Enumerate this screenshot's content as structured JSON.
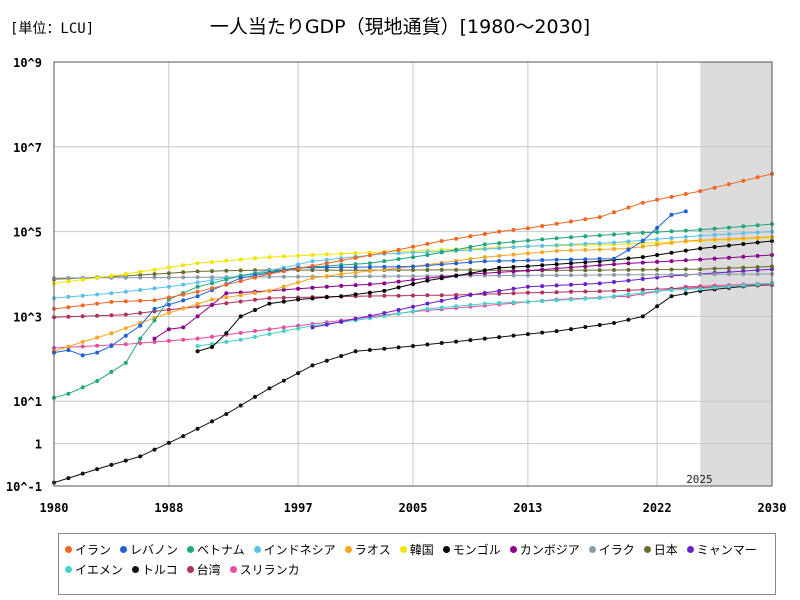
{
  "unit_label": "[単位：LCU]",
  "chart_data": {
    "type": "line",
    "title": "一人当たりGDP（現地通貨）[1980～2030]",
    "xlabel": "",
    "ylabel": "",
    "y_scale": "log",
    "xlim": [
      1980,
      2030
    ],
    "ylim_exponent": [
      -1,
      9
    ],
    "x_ticks": [
      {
        "value": 1980,
        "label": "1980"
      },
      {
        "value": 1988,
        "label": "1988"
      },
      {
        "value": 1997,
        "label": "1997"
      },
      {
        "value": 2005,
        "label": "2005"
      },
      {
        "value": 2013,
        "label": "2013"
      },
      {
        "value": 2022,
        "label": "2022"
      },
      {
        "value": 2030,
        "label": "2030"
      }
    ],
    "y_ticks": [
      {
        "exp": 9,
        "label": "10^9"
      },
      {
        "exp": 7,
        "label": "10^7"
      },
      {
        "exp": 5,
        "label": "10^5"
      },
      {
        "exp": 3,
        "label": "10^3"
      },
      {
        "exp": 1,
        "label": "10^1"
      },
      {
        "exp": 0,
        "label": "1"
      },
      {
        "exp": -1,
        "label": "10^-1"
      }
    ],
    "forecast_region": {
      "start": 2025,
      "end": 2030,
      "label": "2025"
    },
    "series": [
      {
        "name": "イラン",
        "color": "#f26522",
        "start": 1980,
        "end": 2030,
        "anchors": [
          [
            1980,
            1500
          ],
          [
            1984,
            2200
          ],
          [
            1987,
            2400
          ],
          [
            1990,
            3800
          ],
          [
            1995,
            10000
          ],
          [
            1999,
            18000
          ],
          [
            2003,
            32000
          ],
          [
            2007,
            60000
          ],
          [
            2011,
            100000
          ],
          [
            2013,
            120000
          ],
          [
            2018,
            220000
          ],
          [
            2021,
            480000
          ],
          [
            2025,
            900000
          ],
          [
            2030,
            2300000
          ]
        ]
      },
      {
        "name": "レバノン",
        "color": "#1f5fd6",
        "start": 1980,
        "end": 2024,
        "anchors": [
          [
            1980,
            140
          ],
          [
            1981,
            160
          ],
          [
            1982,
            120
          ],
          [
            1983,
            140
          ],
          [
            1984,
            200
          ],
          [
            1985,
            350
          ],
          [
            1986,
            600
          ],
          [
            1987,
            1500
          ],
          [
            1990,
            3000
          ],
          [
            1993,
            8000
          ],
          [
            1997,
            14000
          ],
          [
            2005,
            15000
          ],
          [
            2010,
            20000
          ],
          [
            2019,
            23000
          ],
          [
            2021,
            60000
          ],
          [
            2023,
            250000
          ],
          [
            2024,
            300000
          ]
        ]
      },
      {
        "name": "ベトナム",
        "color": "#1fa67a",
        "start": 1980,
        "end": 2030,
        "anchors": [
          [
            1980,
            12
          ],
          [
            1981,
            15
          ],
          [
            1983,
            30
          ],
          [
            1985,
            80
          ],
          [
            1986,
            300
          ],
          [
            1987,
            800
          ],
          [
            1988,
            2500
          ],
          [
            1990,
            5000
          ],
          [
            1993,
            9000
          ],
          [
            1997,
            14000
          ],
          [
            2002,
            18000
          ],
          [
            2006,
            28000
          ],
          [
            2010,
            50000
          ],
          [
            2015,
            70000
          ],
          [
            2020,
            90000
          ],
          [
            2025,
            110000
          ],
          [
            2030,
            150000
          ]
        ]
      },
      {
        "name": "インドネシア",
        "color": "#5bc0eb",
        "start": 1980,
        "end": 2030,
        "anchors": [
          [
            1980,
            2700
          ],
          [
            1984,
            3500
          ],
          [
            1988,
            5000
          ],
          [
            1992,
            8000
          ],
          [
            1996,
            14000
          ],
          [
            1998,
            20000
          ],
          [
            2003,
            30000
          ],
          [
            2008,
            35000
          ],
          [
            2013,
            45000
          ],
          [
            2019,
            55000
          ],
          [
            2025,
            80000
          ],
          [
            2030,
            100000
          ]
        ]
      },
      {
        "name": "ラオス",
        "color": "#f5a623",
        "start": 1980,
        "end": 2030,
        "anchors": [
          [
            1980,
            150
          ],
          [
            1982,
            250
          ],
          [
            1984,
            400
          ],
          [
            1986,
            700
          ],
          [
            1988,
            1200
          ],
          [
            1991,
            2500
          ],
          [
            1995,
            4000
          ],
          [
            1998,
            8000
          ],
          [
            2000,
            10000
          ],
          [
            2005,
            15000
          ],
          [
            2010,
            25000
          ],
          [
            2015,
            35000
          ],
          [
            2020,
            40000
          ],
          [
            2024,
            60000
          ],
          [
            2030,
            75000
          ]
        ]
      },
      {
        "name": "韓国",
        "color": "#f2e500",
        "start": 1980,
        "end": 2030,
        "anchors": [
          [
            1980,
            6000
          ],
          [
            1985,
            10000
          ],
          [
            1990,
            18000
          ],
          [
            1995,
            25000
          ],
          [
            1998,
            28000
          ],
          [
            2003,
            33000
          ],
          [
            2008,
            38000
          ],
          [
            2013,
            45000
          ],
          [
            2019,
            50000
          ],
          [
            2025,
            60000
          ],
          [
            2030,
            72000
          ]
        ]
      },
      {
        "name": "モンゴル",
        "color": "#000000",
        "start": 1990,
        "end": 2030,
        "anchors": [
          [
            1990,
            150
          ],
          [
            1991,
            190
          ],
          [
            1992,
            400
          ],
          [
            1993,
            1000
          ],
          [
            1995,
            2000
          ],
          [
            1997,
            2500
          ],
          [
            2000,
            3000
          ],
          [
            2003,
            4000
          ],
          [
            2006,
            7000
          ],
          [
            2008,
            9000
          ],
          [
            2011,
            14000
          ],
          [
            2014,
            16000
          ],
          [
            2018,
            20000
          ],
          [
            2021,
            25000
          ],
          [
            2025,
            40000
          ],
          [
            2030,
            60000
          ]
        ]
      },
      {
        "name": "カンボジア",
        "color": "#8b008b",
        "start": 1987,
        "end": 2030,
        "anchors": [
          [
            1987,
            300
          ],
          [
            1988,
            500
          ],
          [
            1989,
            550
          ],
          [
            1990,
            1000
          ],
          [
            1992,
            3500
          ],
          [
            1995,
            4000
          ],
          [
            1999,
            5000
          ],
          [
            2003,
            6000
          ],
          [
            2006,
            8000
          ],
          [
            2009,
            10000
          ],
          [
            2013,
            12000
          ],
          [
            2019,
            17000
          ],
          [
            2025,
            22000
          ],
          [
            2030,
            28000
          ]
        ]
      },
      {
        "name": "イラク",
        "color": "#8a9ba8",
        "start": 1980,
        "end": 2030,
        "anchors": [
          [
            1980,
            8000
          ],
          [
            2030,
            10000
          ]
        ]
      },
      {
        "name": "日本",
        "color": "#6b6b2f",
        "start": 1980,
        "end": 2030,
        "anchors": [
          [
            1980,
            7500
          ],
          [
            1985,
            9000
          ],
          [
            1990,
            11500
          ],
          [
            1995,
            12500
          ],
          [
            2000,
            12300
          ],
          [
            2008,
            12500
          ],
          [
            2013,
            12000
          ],
          [
            2020,
            12500
          ],
          [
            2025,
            13000
          ],
          [
            2030,
            15000
          ]
        ]
      },
      {
        "name": "ミャンマー",
        "color": "#6a1fc9",
        "start": 1998,
        "end": 2030,
        "anchors": [
          [
            1998,
            550
          ],
          [
            2000,
            750
          ],
          [
            2003,
            1200
          ],
          [
            2006,
            2000
          ],
          [
            2009,
            3200
          ],
          [
            2013,
            5000
          ],
          [
            2018,
            6000
          ],
          [
            2020,
            7000
          ],
          [
            2023,
            9000
          ],
          [
            2030,
            13000
          ]
        ]
      },
      {
        "name": "イエメン",
        "color": "#48d1cc",
        "start": 1990,
        "end": 2030,
        "anchors": [
          [
            1990,
            200
          ],
          [
            1993,
            280
          ],
          [
            1996,
            450
          ],
          [
            1998,
            600
          ],
          [
            2002,
            900
          ],
          [
            2006,
            1500
          ],
          [
            2010,
            2000
          ],
          [
            2014,
            2300
          ],
          [
            2018,
            2700
          ],
          [
            2022,
            4000
          ],
          [
            2025,
            4500
          ],
          [
            2030,
            6000
          ]
        ]
      },
      {
        "name": "トルコ",
        "color": "#111111",
        "start": 1980,
        "end": 2030,
        "anchors": [
          [
            1980,
            0.12
          ],
          [
            1983,
            0.25
          ],
          [
            1986,
            0.5
          ],
          [
            1989,
            1.5
          ],
          [
            1992,
            5
          ],
          [
            1995,
            20
          ],
          [
            1998,
            70
          ],
          [
            2001,
            150
          ],
          [
            2005,
            200
          ],
          [
            2010,
            300
          ],
          [
            2015,
            450
          ],
          [
            2019,
            700
          ],
          [
            2021,
            1000
          ],
          [
            2023,
            3000
          ],
          [
            2025,
            4000
          ],
          [
            2030,
            6000
          ]
        ]
      },
      {
        "name": "台湾",
        "color": "#b03060",
        "start": 1980,
        "end": 2030,
        "anchors": [
          [
            1980,
            950
          ],
          [
            1985,
            1100
          ],
          [
            1990,
            1700
          ],
          [
            1995,
            2700
          ],
          [
            2001,
            3000
          ],
          [
            2008,
            3200
          ],
          [
            2013,
            3600
          ],
          [
            2019,
            4000
          ],
          [
            2025,
            4800
          ],
          [
            2030,
            5500
          ]
        ]
      },
      {
        "name": "スリランカ",
        "color": "#e64ea0",
        "start": 1980,
        "end": 2030,
        "anchors": [
          [
            1980,
            180
          ],
          [
            1985,
            220
          ],
          [
            1990,
            300
          ],
          [
            1995,
            500
          ],
          [
            2000,
            800
          ],
          [
            2005,
            1300
          ],
          [
            2010,
            1800
          ],
          [
            2015,
            2500
          ],
          [
            2020,
            3000
          ],
          [
            2024,
            5000
          ],
          [
            2030,
            6000
          ]
        ]
      }
    ]
  }
}
